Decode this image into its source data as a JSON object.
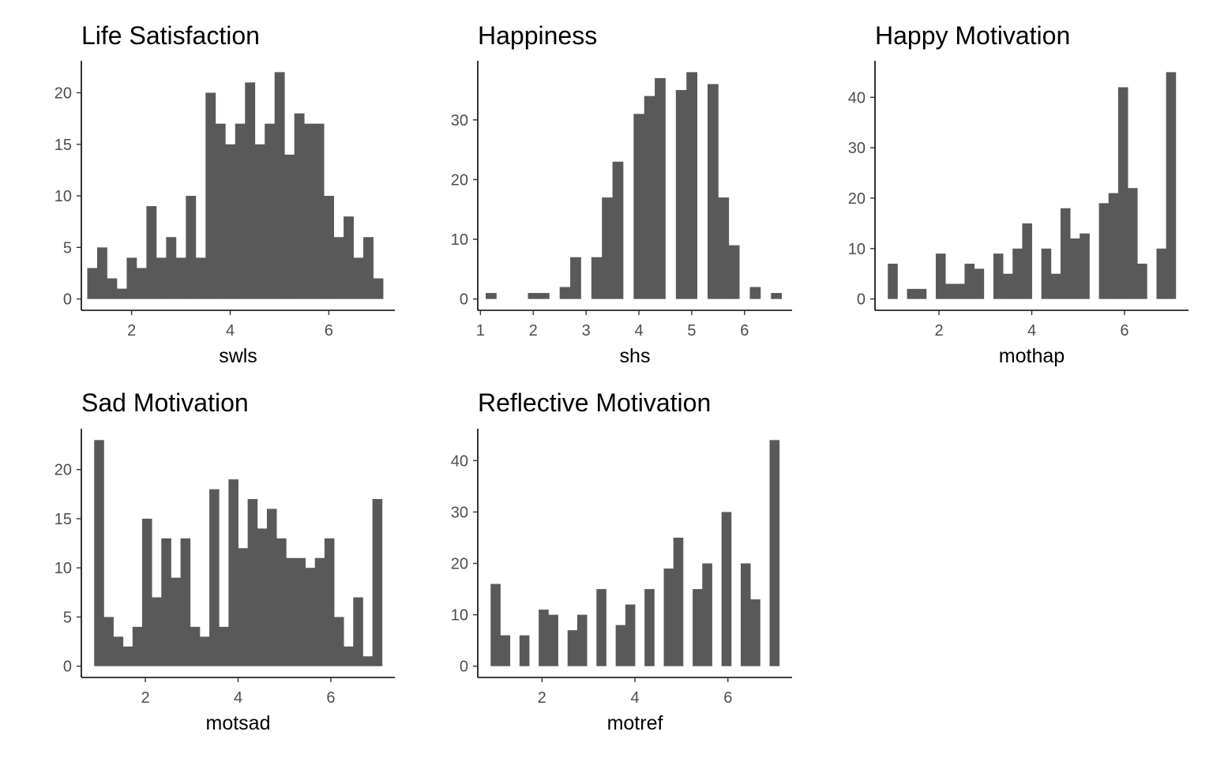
{
  "colors": {
    "bar": "#595959",
    "axis": "#000000",
    "tick_label": "#4d4d4d",
    "background": "#ffffff"
  },
  "chart_data": [
    {
      "type": "bar",
      "subtype": "histogram",
      "title": "Life Satisfaction",
      "xlabel": "swls",
      "ylabel": "",
      "binwidth": 0.2,
      "xlim": [
        0.98,
        7.34
      ],
      "ylim": [
        -1.1,
        23.1
      ],
      "xticks": [
        2,
        4,
        6
      ],
      "yticks": [
        0,
        5,
        10,
        15,
        20
      ],
      "x": [
        1.2,
        1.4,
        1.6,
        1.8,
        2.0,
        2.2,
        2.4,
        2.6,
        2.8,
        3.0,
        3.2,
        3.4,
        3.6,
        3.8,
        4.0,
        4.2,
        4.4,
        4.6,
        4.8,
        5.0,
        5.2,
        5.4,
        5.6,
        5.8,
        6.0,
        6.2,
        6.4,
        6.6,
        6.8,
        7.0
      ],
      "values": [
        3,
        5,
        2,
        1,
        4,
        3,
        9,
        4,
        6,
        4,
        10,
        4,
        20,
        17,
        15,
        17,
        21,
        15,
        17,
        22,
        14,
        18,
        17,
        17,
        10,
        6,
        8,
        4,
        6,
        2
      ]
    },
    {
      "type": "bar",
      "subtype": "histogram",
      "title": "Happiness",
      "xlabel": "shs",
      "ylabel": "",
      "binwidth": 0.2,
      "xlim": [
        0.95,
        6.9
      ],
      "ylim": [
        -1.9,
        39.9
      ],
      "xticks": [
        1,
        2,
        3,
        4,
        5,
        6
      ],
      "yticks": [
        0,
        10,
        20,
        30
      ],
      "x": [
        1.2,
        1.4,
        1.6,
        1.8,
        2.0,
        2.2,
        2.4,
        2.6,
        2.8,
        3.0,
        3.2,
        3.4,
        3.6,
        3.8,
        4.0,
        4.2,
        4.4,
        4.6,
        4.8,
        5.0,
        5.2,
        5.4,
        5.6,
        5.8,
        6.0,
        6.2,
        6.4,
        6.6
      ],
      "values": [
        1,
        0,
        0,
        0,
        1,
        1,
        0,
        2,
        7,
        0,
        7,
        17,
        23,
        0,
        31,
        34,
        37,
        0,
        35,
        38,
        0,
        36,
        17,
        9,
        0,
        2,
        0,
        1
      ]
    },
    {
      "type": "bar",
      "subtype": "histogram",
      "title": "Happy Motivation",
      "xlabel": "mothap",
      "ylabel": "",
      "binwidth": 0.207,
      "xlim": [
        0.62,
        7.38
      ],
      "ylim": [
        -2.25,
        47.25
      ],
      "xticks": [
        2,
        4,
        6
      ],
      "yticks": [
        0,
        10,
        20,
        30,
        40
      ],
      "x": [
        1.0,
        1.207,
        1.414,
        1.621,
        1.828,
        2.034,
        2.241,
        2.448,
        2.655,
        2.862,
        3.069,
        3.276,
        3.483,
        3.69,
        3.897,
        4.103,
        4.31,
        4.517,
        4.724,
        4.931,
        5.138,
        5.345,
        5.552,
        5.759,
        5.966,
        6.172,
        6.379,
        6.586,
        6.793,
        7.0
      ],
      "values": [
        7,
        0,
        2,
        2,
        0,
        9,
        3,
        3,
        7,
        6,
        0,
        9,
        5,
        10,
        15,
        0,
        10,
        5,
        18,
        12,
        13,
        0,
        19,
        21,
        42,
        22,
        7,
        0,
        10,
        45
      ]
    },
    {
      "type": "bar",
      "subtype": "histogram",
      "title": "Sad Motivation",
      "xlabel": "motsad",
      "ylabel": "",
      "binwidth": 0.207,
      "xlim": [
        0.62,
        7.38
      ],
      "ylim": [
        -1.15,
        24.15
      ],
      "xticks": [
        2,
        4,
        6
      ],
      "yticks": [
        0,
        5,
        10,
        15,
        20
      ],
      "x": [
        1.0,
        1.207,
        1.414,
        1.621,
        1.828,
        2.034,
        2.241,
        2.448,
        2.655,
        2.862,
        3.069,
        3.276,
        3.483,
        3.69,
        3.897,
        4.103,
        4.31,
        4.517,
        4.724,
        4.931,
        5.138,
        5.345,
        5.552,
        5.759,
        5.966,
        6.172,
        6.379,
        6.586,
        6.793,
        7.0
      ],
      "values": [
        23,
        5,
        3,
        2,
        4,
        15,
        7,
        13,
        9,
        13,
        4,
        3,
        18,
        4,
        19,
        12,
        17,
        14,
        16,
        13,
        11,
        11,
        10,
        11,
        13,
        5,
        2,
        7,
        1,
        17
      ]
    },
    {
      "type": "bar",
      "subtype": "histogram",
      "title": "Reflective Motivation",
      "xlabel": "motref",
      "ylabel": "",
      "binwidth": 0.207,
      "xlim": [
        0.62,
        7.38
      ],
      "ylim": [
        -2.2,
        46.2
      ],
      "xticks": [
        2,
        4,
        6
      ],
      "yticks": [
        0,
        10,
        20,
        30,
        40
      ],
      "x": [
        1.0,
        1.207,
        1.414,
        1.621,
        1.828,
        2.034,
        2.241,
        2.448,
        2.655,
        2.862,
        3.069,
        3.276,
        3.483,
        3.69,
        3.897,
        4.103,
        4.31,
        4.517,
        4.724,
        4.931,
        5.138,
        5.345,
        5.552,
        5.759,
        5.966,
        6.172,
        6.379,
        6.586,
        6.793,
        7.0
      ],
      "values": [
        16,
        6,
        0,
        6,
        0,
        11,
        10,
        0,
        7,
        10,
        0,
        15,
        0,
        8,
        12,
        0,
        15,
        0,
        19,
        25,
        0,
        15,
        20,
        0,
        30,
        0,
        20,
        13,
        0,
        44
      ]
    }
  ]
}
